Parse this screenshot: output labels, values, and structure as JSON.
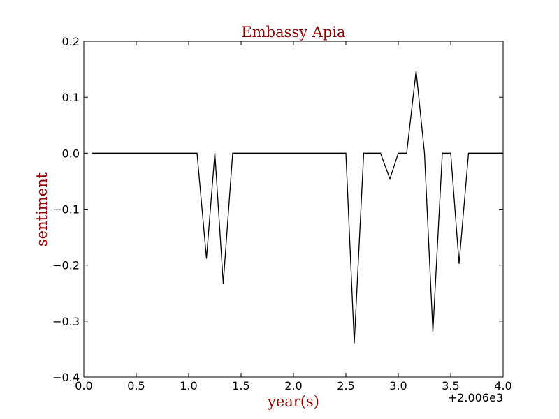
{
  "chart_data": {
    "type": "line",
    "title": "Embassy Apia",
    "xlabel": "year(s)",
    "ylabel": "sentiment",
    "x_offset_label": "+2.006e3",
    "xlim": [
      0.0,
      4.0
    ],
    "ylim": [
      -0.4,
      0.2
    ],
    "x_ticks": [
      "0.0",
      "0.5",
      "1.0",
      "1.5",
      "2.0",
      "2.5",
      "3.0",
      "3.5",
      "4.0"
    ],
    "y_ticks": [
      "0.2",
      "0.1",
      "0.0",
      "−0.1",
      "−0.2",
      "−0.3",
      "−0.4"
    ],
    "grid": false,
    "title_color": "#8b0000",
    "label_color": "#8b0000",
    "line_color": "#000000",
    "series": [
      {
        "x": [
          0.08,
          1.08,
          1.17,
          1.25,
          1.33,
          1.42,
          2.5,
          2.58,
          2.67,
          2.83,
          2.92,
          3.0,
          3.08,
          3.17,
          3.25,
          3.33,
          3.42,
          3.5,
          3.58,
          3.67,
          4.0
        ],
        "values": [
          0.0,
          0.0,
          -0.188,
          0.0,
          -0.233,
          0.0,
          0.0,
          -0.339,
          0.0,
          0.0,
          -0.046,
          0.0,
          0.0,
          0.147,
          0.0,
          -0.319,
          0.0,
          0.0,
          -0.197,
          0.0,
          0.0
        ]
      }
    ]
  }
}
